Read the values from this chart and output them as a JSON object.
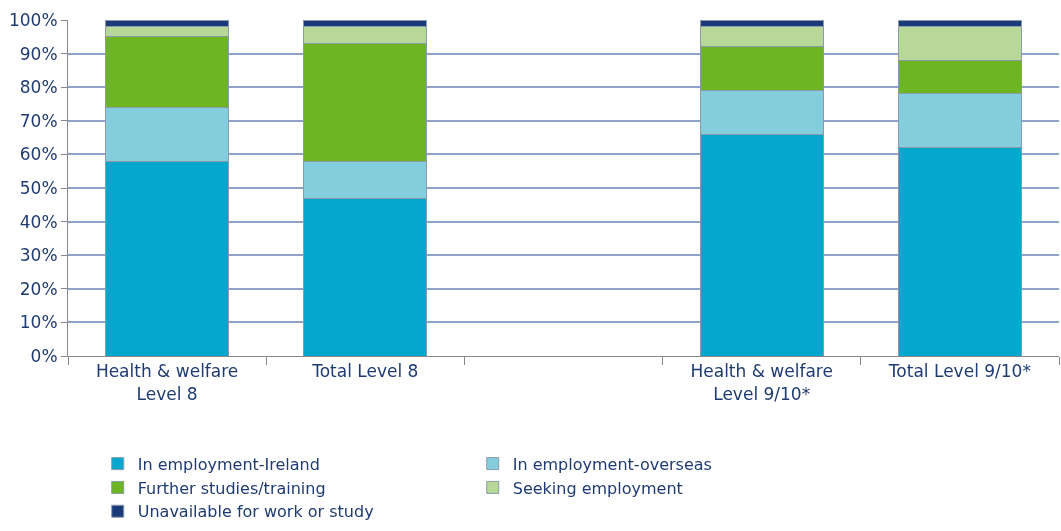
{
  "chart_data": {
    "type": "bar",
    "stacked": true,
    "categories": [
      "Health & welfare\nLevel 8",
      "Total Level 8",
      null,
      "Health & welfare\nLevel 9/10*",
      "Total Level 9/10*"
    ],
    "series": [
      {
        "name": "In employment-Ireland",
        "color": "#06a7cf",
        "values": [
          58,
          47,
          null,
          66,
          62
        ]
      },
      {
        "name": "In employment-overseas",
        "color": "#84cddc",
        "values": [
          16,
          11,
          null,
          13,
          16
        ]
      },
      {
        "name": "Further studies/training",
        "color": "#6db523",
        "values": [
          21,
          35,
          null,
          13,
          10
        ]
      },
      {
        "name": "Seeking employment",
        "color": "#b8d89a",
        "values": [
          3,
          5,
          null,
          6,
          10
        ]
      },
      {
        "name": "Unavailable for work or study",
        "color": "#1a3a7a",
        "values": [
          2,
          2,
          null,
          2,
          2
        ]
      }
    ],
    "ylim": [
      0,
      100
    ],
    "yticks": [
      {
        "value": 0,
        "label": "0%"
      },
      {
        "value": 10,
        "label": "10%"
      },
      {
        "value": 20,
        "label": "20%"
      },
      {
        "value": 30,
        "label": "30%"
      },
      {
        "value": 40,
        "label": "40%"
      },
      {
        "value": 50,
        "label": "50%"
      },
      {
        "value": 60,
        "label": "60%"
      },
      {
        "value": 70,
        "label": "70%"
      },
      {
        "value": 80,
        "label": "80%"
      },
      {
        "value": 90,
        "label": "90%"
      },
      {
        "value": 100,
        "label": "100%"
      }
    ],
    "grid": "y",
    "legend": "bottom"
  }
}
